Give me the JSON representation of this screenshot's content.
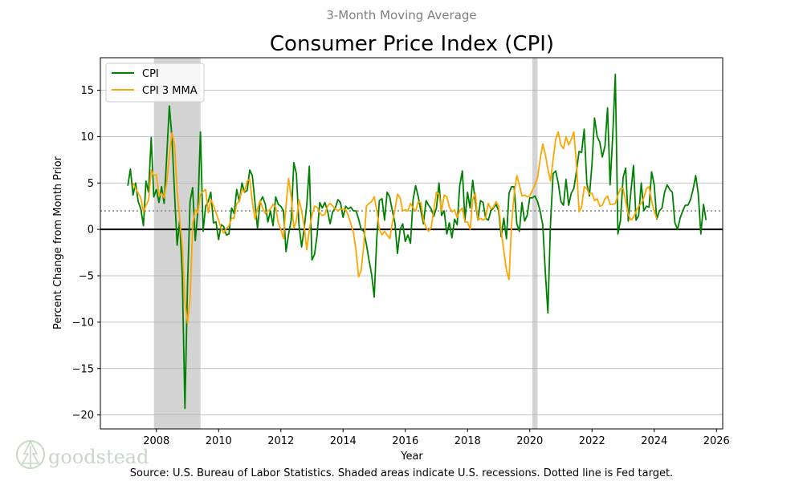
{
  "chart_data": {
    "type": "line",
    "suptitle": "3-Month Moving Average",
    "title": "Consumer Price Index (CPI)",
    "xlabel": "Year",
    "ylabel": "Percent Change from Month Prior",
    "xlim": [
      2006.2,
      2026.2
    ],
    "ylim": [
      -21.5,
      18.5
    ],
    "x_ticks": [
      2008,
      2010,
      2012,
      2014,
      2016,
      2018,
      2020,
      2022,
      2024,
      2026
    ],
    "y_ticks": [
      -20,
      -15,
      -10,
      -5,
      0,
      5,
      10,
      15
    ],
    "x_tick_labels": [
      "2008",
      "2010",
      "2012",
      "2014",
      "2016",
      "2018",
      "2020",
      "2022",
      "2024",
      "2026"
    ],
    "y_tick_labels": [
      "−20",
      "−15",
      "−10",
      "−5",
      "0",
      "5",
      "10",
      "15"
    ],
    "grid": "horizontal",
    "legend_position": "top-left",
    "recessions": [
      [
        2007.92,
        2009.42
      ],
      [
        2020.08,
        2020.25
      ]
    ],
    "reference_lines": [
      {
        "name": "Fed target",
        "y": 2,
        "style": "dotted",
        "color": "#808080"
      },
      {
        "name": "Zero",
        "y": 0,
        "style": "solid",
        "color": "#000000"
      }
    ],
    "series": [
      {
        "name": "CPI",
        "color": "#008000",
        "x_start": 2007.083,
        "step": 0.08333,
        "values": [
          4.7,
          6.5,
          3.7,
          5.0,
          3.0,
          2.2,
          0.4,
          5.2,
          4.0,
          9.9,
          3.5,
          4.3,
          2.9,
          4.6,
          2.8,
          8.0,
          13.3,
          10.0,
          4.0,
          -1.7,
          1.0,
          -5.0,
          -19.3,
          -6.0,
          3.0,
          4.5,
          -1.2,
          2.0,
          10.5,
          -0.2,
          2.5,
          3.0,
          4.0,
          0.7,
          0.8,
          -1.1,
          0.5,
          0.3,
          -0.6,
          -0.5,
          2.3,
          1.7,
          4.3,
          3.0,
          5.0,
          4.0,
          4.2,
          6.4,
          5.8,
          3.0,
          0.1,
          3.0,
          3.5,
          2.7,
          0.8,
          2.0,
          0.4,
          3.5,
          2.7,
          2.5,
          2.0,
          -2.4,
          -0.5,
          1.0,
          7.2,
          6.0,
          0.5,
          -1.9,
          0.1,
          2.6,
          6.8,
          -3.3,
          -2.7,
          -0.6,
          2.9,
          2.3,
          2.9,
          2.0,
          0.6,
          1.9,
          2.3,
          3.2,
          2.9,
          1.3,
          2.5,
          2.2,
          2.4,
          2.0,
          2.0,
          1.1,
          0.0,
          -0.2,
          -1.6,
          -3.3,
          -4.8,
          -7.3,
          -1.0,
          3.1,
          3.3,
          1.0,
          4.0,
          3.5,
          2.0,
          0.7,
          -2.6,
          0.0,
          0.6,
          -1.3,
          -0.6,
          -1.5,
          3.2,
          4.7,
          3.5,
          2.0,
          0.6,
          3.1,
          2.6,
          2.2,
          1.4,
          2.3,
          5.0,
          1.5,
          2.0,
          -0.5,
          0.7,
          -0.9,
          1.1,
          0.5,
          4.7,
          6.3,
          1.0,
          4.0,
          2.3,
          5.3,
          3.0,
          1.0,
          3.1,
          2.9,
          1.2,
          1.0,
          2.0,
          2.3,
          2.7,
          2.0,
          -0.8,
          1.2,
          -1.0,
          3.9,
          4.6,
          4.6,
          0.6,
          -0.2,
          2.9,
          0.9,
          1.5,
          3.4,
          3.4,
          3.6,
          3.0,
          2.0,
          0.5,
          -4.6,
          -9.0,
          0.5,
          6.0,
          6.3,
          5.0,
          3.0,
          2.6,
          5.4,
          2.6,
          3.9,
          4.4,
          6.2,
          8.4,
          8.3,
          10.8,
          5.0,
          3.6,
          7.0,
          12.0,
          10.0,
          9.4,
          7.8,
          9.0,
          13.1,
          4.8,
          10.0,
          16.7,
          -0.5,
          1.0,
          5.6,
          6.6,
          0.9,
          4.0,
          6.9,
          1.0,
          1.5,
          5.0,
          2.0,
          2.5,
          2.4,
          6.2,
          4.8,
          1.1,
          2.0,
          2.3,
          4.0,
          4.8,
          4.3,
          4.0,
          0.7,
          0.0,
          1.2,
          2.0,
          2.6,
          2.6,
          3.2,
          4.3,
          5.8,
          3.8,
          -0.5,
          2.7,
          1.0
        ]
      },
      {
        "name": "CPI 3 MMA",
        "color": "#ffa500",
        "x_start": 2007.25,
        "step": 0.08333,
        "values": [
          5.0,
          4.4,
          3.9,
          3.4,
          1.9,
          2.6,
          3.2,
          6.4,
          5.8,
          5.9,
          3.6,
          3.9,
          3.4,
          5.1,
          8.0,
          10.4,
          9.1,
          4.1,
          1.1,
          -1.9,
          -7.8,
          -10.1,
          -7.4,
          0.5,
          2.1,
          1.8,
          3.8,
          4.1,
          4.3,
          1.8,
          3.2,
          2.6,
          1.8,
          1.0,
          0.1,
          -0.4,
          0.1,
          0.4,
          1.2,
          1.2,
          2.8,
          3.0,
          4.3,
          4.1,
          5.2,
          5.4,
          3.0,
          1.1,
          2.2,
          3.1,
          2.3,
          1.7,
          2.0,
          2.2,
          2.7,
          2.4,
          0.7,
          0.0,
          -1.0,
          2.6,
          5.5,
          3.5,
          0.1,
          0.9,
          3.2,
          2.0,
          0.3,
          -2.2,
          0.0,
          1.5,
          2.5,
          2.4,
          1.8,
          1.5,
          1.6,
          2.5,
          2.8,
          2.5,
          2.2,
          2.0,
          2.2,
          2.2,
          2.1,
          1.5,
          0.6,
          -0.4,
          -2.3,
          -5.1,
          -4.4,
          -1.7,
          2.5,
          2.8,
          3.0,
          3.5,
          2.1,
          0.0,
          -0.6,
          -0.2,
          -0.6,
          -1.0,
          0.7,
          2.1,
          3.8,
          3.4,
          2.0,
          2.1,
          2.0,
          2.8,
          2.3,
          2.0,
          3.0,
          2.9,
          1.0,
          0.2,
          -0.2,
          0.2,
          2.1,
          4.0,
          3.8,
          2.0,
          3.7,
          3.5,
          2.4,
          1.9,
          2.1,
          1.3,
          2.0,
          2.3,
          0.8,
          0.8,
          0.0,
          3.2,
          3.9,
          1.0,
          1.2,
          1.0,
          1.2,
          2.8,
          2.2,
          2.4,
          3.0,
          2.5,
          -0.2,
          -2.3,
          -4.4,
          -5.4,
          0.6,
          3.9,
          5.8,
          4.8,
          3.6,
          3.7,
          3.5,
          3.6,
          4.2,
          4.8,
          5.6,
          7.5,
          9.2,
          8.1,
          6.5,
          5.2,
          7.5,
          9.7,
          10.5,
          9.1,
          8.7,
          10.0,
          9.1,
          9.7,
          10.5,
          7.0,
          1.9,
          2.4,
          4.6,
          4.4,
          3.8,
          3.9,
          3.1,
          3.3,
          2.5,
          2.6,
          3.3,
          3.6,
          2.7,
          2.7,
          2.8,
          3.7,
          4.4,
          4.4,
          3.0,
          1.6,
          1.0,
          1.3,
          1.9,
          2.5,
          2.8,
          3.4,
          4.4,
          4.6,
          3.0,
          2.0,
          1.1
        ]
      }
    ],
    "source_note": "Source: U.S. Bureau of Labor Statistics. Shaded areas indicate U.S. recessions. Dotted line is Fed target."
  },
  "branding": {
    "logo_icon": "pine-tree-icon",
    "logo_text": "goodstead"
  }
}
